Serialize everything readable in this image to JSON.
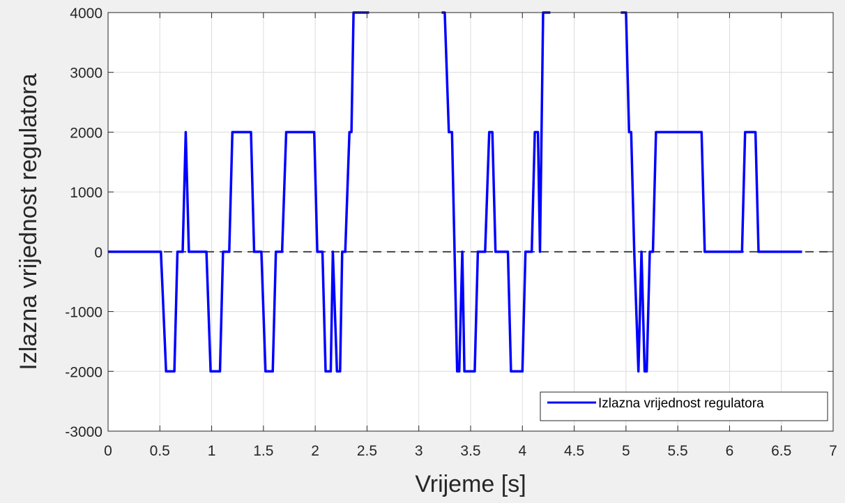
{
  "chart_data": {
    "type": "line",
    "xlabel": "Vrijeme [s]",
    "ylabel": "Izlazna vrijednost regulatora",
    "xlim": [
      0,
      7
    ],
    "ylim": [
      -3000,
      4000
    ],
    "xticks": [
      0,
      0.5,
      1,
      1.5,
      2,
      2.5,
      3,
      3.5,
      4,
      4.5,
      5,
      5.5,
      6,
      6.5,
      7
    ],
    "yticks": [
      -3000,
      -2000,
      -1000,
      0,
      1000,
      2000,
      3000,
      4000
    ],
    "xticklabels": [
      "0",
      "0.5",
      "1",
      "1.5",
      "2",
      "2.5",
      "3",
      "3.5",
      "4",
      "4.5",
      "5",
      "5.5",
      "6",
      "6.5",
      "7"
    ],
    "yticklabels": [
      "-3000",
      "-2000",
      "-1000",
      "0",
      "1000",
      "2000",
      "3000",
      "4000"
    ],
    "grid": true,
    "legend_position": "bottom-right",
    "reference_line": {
      "y": 0,
      "style": "dashed",
      "color": "#444444"
    },
    "series": [
      {
        "name": "Izlazna vrijednost regulatora",
        "color": "#0000ff",
        "segments": [
          {
            "x": [
              0,
              0.51,
              0.56,
              0.64,
              0.67,
              0.72,
              0.75,
              0.78,
              0.81,
              0.95,
              0.99,
              1.08,
              1.11,
              1.17,
              1.2,
              1.38,
              1.41,
              1.48,
              1.52,
              1.59,
              1.62,
              1.68,
              1.72,
              1.99,
              2.02,
              2.07,
              2.1,
              2.15,
              2.17,
              2.21,
              2.24,
              2.26,
              2.29,
              2.33,
              2.35,
              2.37,
              2.4,
              2.44,
              2.52
            ],
            "y": [
              0,
              0,
              -2000,
              -2000,
              0,
              0,
              2000,
              0,
              0,
              0,
              -2000,
              -2000,
              0,
              0,
              2000,
              2000,
              0,
              0,
              -2000,
              -2000,
              0,
              0,
              2000,
              2000,
              0,
              0,
              -2000,
              -2000,
              0,
              -2000,
              -2000,
              0,
              0,
              2000,
              2000,
              4000,
              4000,
              4000,
              4000
            ]
          },
          {
            "x": [
              3.22,
              3.25,
              3.29,
              3.32,
              3.37,
              3.39,
              3.42,
              3.44,
              3.47,
              3.54,
              3.57,
              3.64,
              3.68,
              3.71,
              3.74,
              3.86,
              3.89,
              4.0,
              4.03,
              4.09,
              4.12,
              4.15,
              4.17,
              4.2,
              4.23,
              4.27
            ],
            "y": [
              4000,
              4000,
              2000,
              2000,
              -2000,
              -2000,
              0,
              -2000,
              -2000,
              -2000,
              0,
              0,
              2000,
              2000,
              0,
              0,
              -2000,
              -2000,
              0,
              0,
              2000,
              2000,
              0,
              4000,
              4000,
              4000
            ]
          },
          {
            "x": [
              4.95,
              5.0,
              5.03,
              5.05,
              5.08,
              5.12,
              5.15,
              5.18,
              5.2,
              5.23,
              5.26,
              5.29,
              5.73,
              5.76,
              6.12,
              6.15,
              6.25,
              6.28,
              6.7
            ],
            "y": [
              4000,
              4000,
              2000,
              2000,
              0,
              -2000,
              0,
              -2000,
              -2000,
              0,
              0,
              2000,
              2000,
              0,
              0,
              2000,
              2000,
              0,
              0
            ]
          }
        ]
      }
    ]
  }
}
